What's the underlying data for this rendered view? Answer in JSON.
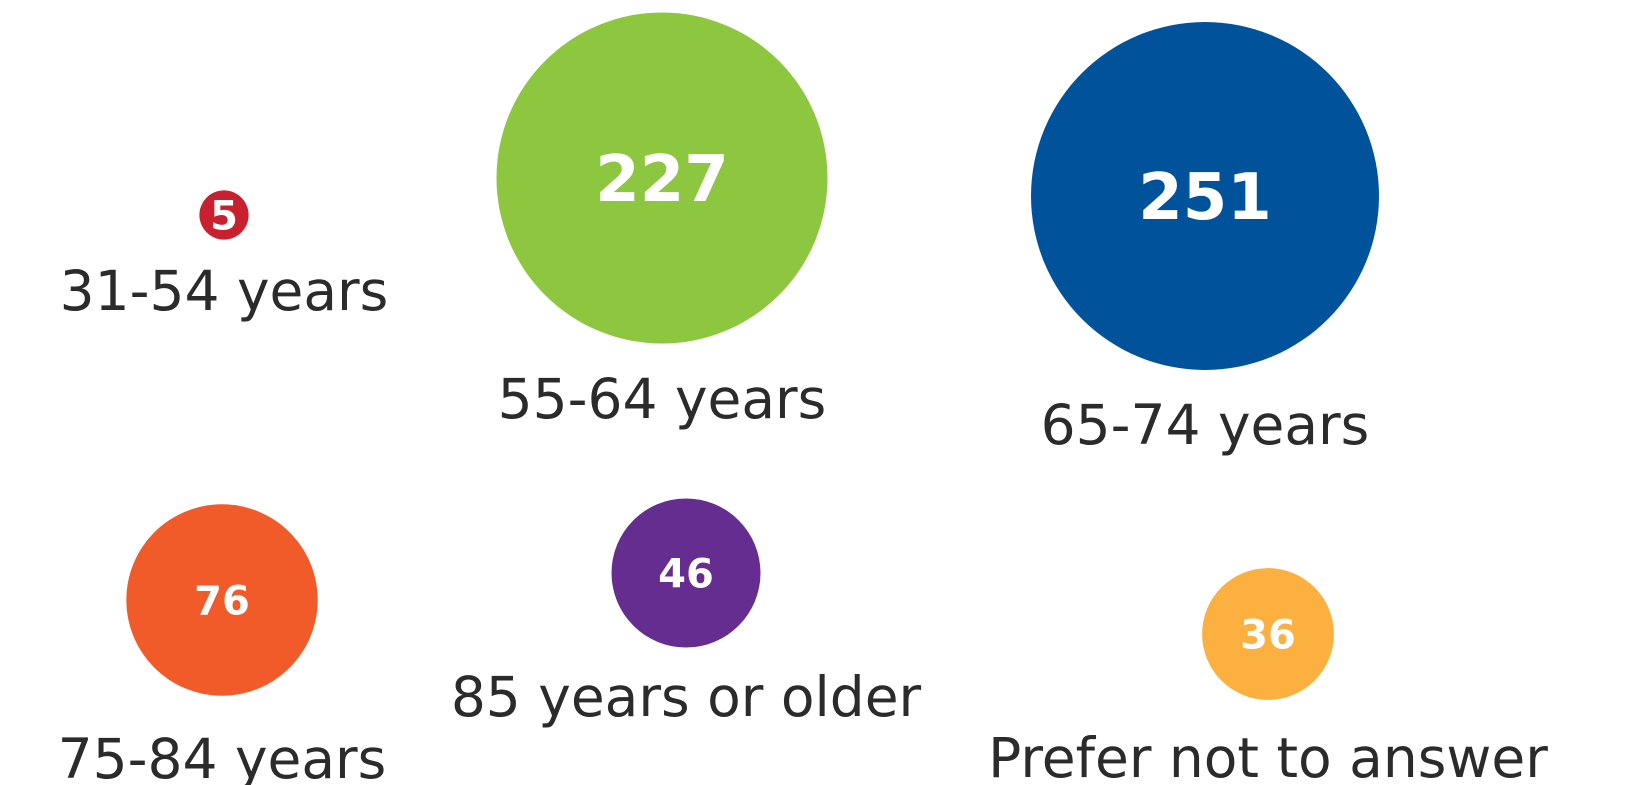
{
  "chart_data": {
    "type": "bubble",
    "title": "",
    "categories": [
      "31-54 years",
      "55-64 years",
      "65-74 years",
      "75-84 years",
      "85 years or older",
      "Prefer not to answer"
    ],
    "values": [
      5,
      227,
      251,
      76,
      46,
      36
    ],
    "colors": [
      "#c8202f",
      "#8dc63f",
      "#00539b",
      "#f15a29",
      "#662d91",
      "#fbb040"
    ],
    "grid": false,
    "legend": "none"
  }
}
